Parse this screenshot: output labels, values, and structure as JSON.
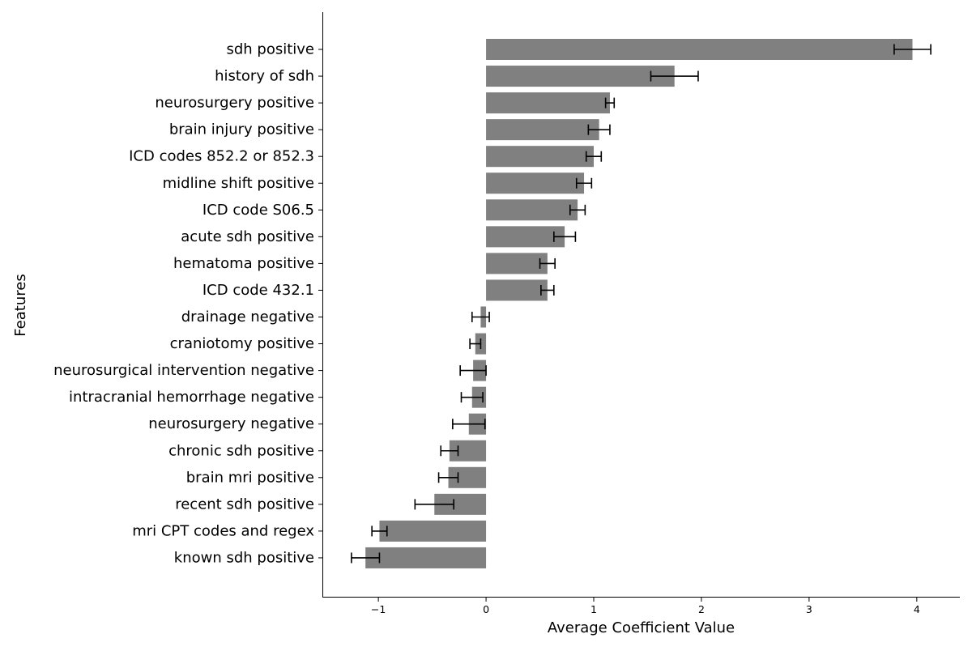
{
  "chart_data": {
    "type": "bar",
    "orientation": "horizontal",
    "xlabel": "Average Coefficient Value",
    "ylabel": "Features",
    "xlim": [
      -1.52,
      4.4
    ],
    "xticks": [
      -1,
      0,
      1,
      2,
      3,
      4
    ],
    "xtick_labels": [
      "−1",
      "0",
      "1",
      "2",
      "3",
      "4"
    ],
    "grid": false,
    "bar_color": "#808080",
    "errorbar_color": "#000000",
    "categories": [
      "sdh positive",
      "history of sdh",
      "neurosurgery positive",
      "brain injury positive",
      "ICD codes 852.2 or 852.3",
      "midline shift positive",
      "ICD code S06.5",
      "acute sdh positive",
      "hematoma positive",
      "ICD code 432.1",
      "drainage negative",
      "craniotomy positive",
      "neurosurgical intervention negative",
      "intracranial hemorrhage negative",
      "neurosurgery negative",
      "chronic sdh positive",
      "brain mri positive",
      "recent sdh positive",
      "mri CPT codes and regex",
      "known sdh positive"
    ],
    "values": [
      3.96,
      1.75,
      1.15,
      1.05,
      1.0,
      0.91,
      0.85,
      0.73,
      0.57,
      0.57,
      -0.05,
      -0.1,
      -0.12,
      -0.13,
      -0.16,
      -0.34,
      -0.35,
      -0.48,
      -0.99,
      -1.12
    ],
    "errors": [
      0.17,
      0.22,
      0.04,
      0.1,
      0.07,
      0.07,
      0.07,
      0.1,
      0.07,
      0.06,
      0.08,
      0.05,
      0.12,
      0.1,
      0.15,
      0.08,
      0.09,
      0.18,
      0.07,
      0.13
    ]
  }
}
